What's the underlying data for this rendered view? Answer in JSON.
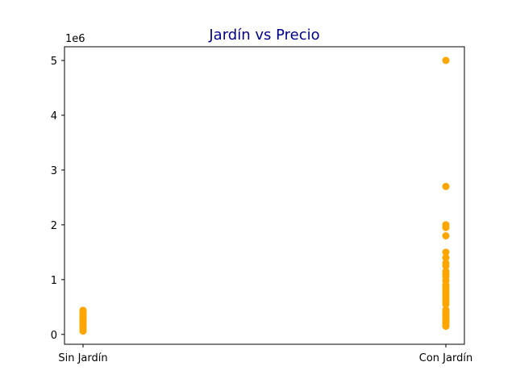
{
  "colors": {
    "title": "#00008b",
    "marker": "#ffa500",
    "axis": "#000000",
    "background": "#ffffff"
  },
  "chart_data": {
    "type": "scatter",
    "title": "Jardín  vs Precio",
    "xlabel": "",
    "ylabel": "",
    "y_offset_label": "1e6",
    "categories": [
      "Sin Jardín",
      "Con Jardín"
    ],
    "y_ticks": [
      0,
      1,
      2,
      3,
      4,
      5
    ],
    "y_multiplier": 1000000,
    "ylim": [
      -180000,
      5250000
    ],
    "grid": false,
    "series": [
      {
        "name": "",
        "points": [
          {
            "x": "Sin Jardín",
            "y": 60000
          },
          {
            "x": "Sin Jardín",
            "y": 100000
          },
          {
            "x": "Sin Jardín",
            "y": 140000
          },
          {
            "x": "Sin Jardín",
            "y": 170000
          },
          {
            "x": "Sin Jardín",
            "y": 200000
          },
          {
            "x": "Sin Jardín",
            "y": 230000
          },
          {
            "x": "Sin Jardín",
            "y": 260000
          },
          {
            "x": "Sin Jardín",
            "y": 290000
          },
          {
            "x": "Sin Jardín",
            "y": 320000
          },
          {
            "x": "Sin Jardín",
            "y": 350000
          },
          {
            "x": "Sin Jardín",
            "y": 380000
          },
          {
            "x": "Sin Jardín",
            "y": 410000
          },
          {
            "x": "Sin Jardín",
            "y": 440000
          },
          {
            "x": "Con Jardín",
            "y": 150000
          },
          {
            "x": "Con Jardín",
            "y": 190000
          },
          {
            "x": "Con Jardín",
            "y": 220000
          },
          {
            "x": "Con Jardín",
            "y": 250000
          },
          {
            "x": "Con Jardín",
            "y": 280000
          },
          {
            "x": "Con Jardín",
            "y": 310000
          },
          {
            "x": "Con Jardín",
            "y": 340000
          },
          {
            "x": "Con Jardín",
            "y": 370000
          },
          {
            "x": "Con Jardín",
            "y": 400000
          },
          {
            "x": "Con Jardín",
            "y": 450000
          },
          {
            "x": "Con Jardín",
            "y": 550000
          },
          {
            "x": "Con Jardín",
            "y": 600000
          },
          {
            "x": "Con Jardín",
            "y": 650000
          },
          {
            "x": "Con Jardín",
            "y": 700000
          },
          {
            "x": "Con Jardín",
            "y": 750000
          },
          {
            "x": "Con Jardín",
            "y": 800000
          },
          {
            "x": "Con Jardín",
            "y": 850000
          },
          {
            "x": "Con Jardín",
            "y": 900000
          },
          {
            "x": "Con Jardín",
            "y": 980000
          },
          {
            "x": "Con Jardín",
            "y": 1050000
          },
          {
            "x": "Con Jardín",
            "y": 1100000
          },
          {
            "x": "Con Jardín",
            "y": 1150000
          },
          {
            "x": "Con Jardín",
            "y": 1250000
          },
          {
            "x": "Con Jardín",
            "y": 1300000
          },
          {
            "x": "Con Jardín",
            "y": 1400000
          },
          {
            "x": "Con Jardín",
            "y": 1500000
          },
          {
            "x": "Con Jardín",
            "y": 1800000
          },
          {
            "x": "Con Jardín",
            "y": 1950000
          },
          {
            "x": "Con Jardín",
            "y": 2000000
          },
          {
            "x": "Con Jardín",
            "y": 2700000
          },
          {
            "x": "Con Jardín",
            "y": 5000000
          }
        ]
      }
    ]
  }
}
